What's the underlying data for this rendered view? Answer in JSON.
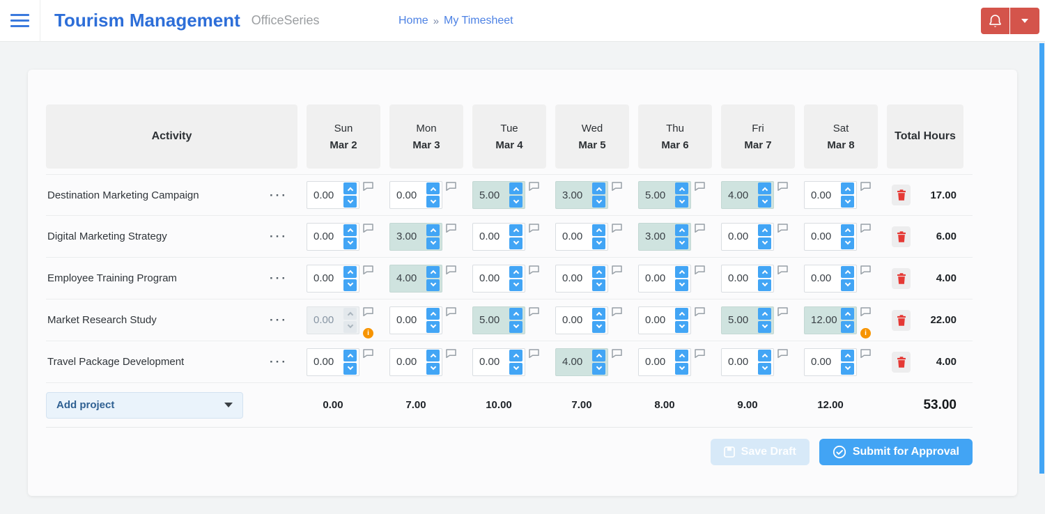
{
  "topbar": {
    "title": "Tourism Management",
    "product": "OfficeSeries",
    "breadcrumb": {
      "home": "Home",
      "separator": "»",
      "current": "My Timesheet"
    }
  },
  "timesheet": {
    "columns": {
      "activity_label": "Activity",
      "total_label": "Total Hours",
      "days": [
        {
          "name": "Sun",
          "date": "Mar 2"
        },
        {
          "name": "Mon",
          "date": "Mar 3"
        },
        {
          "name": "Tue",
          "date": "Mar 4"
        },
        {
          "name": "Wed",
          "date": "Mar 5"
        },
        {
          "name": "Thu",
          "date": "Mar 6"
        },
        {
          "name": "Fri",
          "date": "Mar 7"
        },
        {
          "name": "Sat",
          "date": "Mar 8"
        }
      ]
    },
    "rows": [
      {
        "activity": "Destination Marketing Campaign",
        "total": "17.00",
        "cells": [
          {
            "value": "0.00",
            "filled": false,
            "disabled": false,
            "warning": false
          },
          {
            "value": "0.00",
            "filled": false,
            "disabled": false,
            "warning": false
          },
          {
            "value": "5.00",
            "filled": true,
            "disabled": false,
            "warning": false
          },
          {
            "value": "3.00",
            "filled": true,
            "disabled": false,
            "warning": false
          },
          {
            "value": "5.00",
            "filled": true,
            "disabled": false,
            "warning": false
          },
          {
            "value": "4.00",
            "filled": true,
            "disabled": false,
            "warning": false
          },
          {
            "value": "0.00",
            "filled": false,
            "disabled": false,
            "warning": false
          }
        ]
      },
      {
        "activity": "Digital Marketing Strategy",
        "total": "6.00",
        "cells": [
          {
            "value": "0.00",
            "filled": false,
            "disabled": false,
            "warning": false
          },
          {
            "value": "3.00",
            "filled": true,
            "disabled": false,
            "warning": false
          },
          {
            "value": "0.00",
            "filled": false,
            "disabled": false,
            "warning": false
          },
          {
            "value": "0.00",
            "filled": false,
            "disabled": false,
            "warning": false
          },
          {
            "value": "3.00",
            "filled": true,
            "disabled": false,
            "warning": false
          },
          {
            "value": "0.00",
            "filled": false,
            "disabled": false,
            "warning": false
          },
          {
            "value": "0.00",
            "filled": false,
            "disabled": false,
            "warning": false
          }
        ]
      },
      {
        "activity": "Employee Training Program",
        "total": "4.00",
        "cells": [
          {
            "value": "0.00",
            "filled": false,
            "disabled": false,
            "warning": false
          },
          {
            "value": "4.00",
            "filled": true,
            "disabled": false,
            "warning": false
          },
          {
            "value": "0.00",
            "filled": false,
            "disabled": false,
            "warning": false
          },
          {
            "value": "0.00",
            "filled": false,
            "disabled": false,
            "warning": false
          },
          {
            "value": "0.00",
            "filled": false,
            "disabled": false,
            "warning": false
          },
          {
            "value": "0.00",
            "filled": false,
            "disabled": false,
            "warning": false
          },
          {
            "value": "0.00",
            "filled": false,
            "disabled": false,
            "warning": false
          }
        ]
      },
      {
        "activity": "Market Research Study",
        "total": "22.00",
        "cells": [
          {
            "value": "0.00",
            "filled": false,
            "disabled": true,
            "warning": true
          },
          {
            "value": "0.00",
            "filled": false,
            "disabled": false,
            "warning": false
          },
          {
            "value": "5.00",
            "filled": true,
            "disabled": false,
            "warning": false
          },
          {
            "value": "0.00",
            "filled": false,
            "disabled": false,
            "warning": false
          },
          {
            "value": "0.00",
            "filled": false,
            "disabled": false,
            "warning": false
          },
          {
            "value": "5.00",
            "filled": true,
            "disabled": false,
            "warning": false
          },
          {
            "value": "12.00",
            "filled": true,
            "disabled": false,
            "warning": true
          }
        ]
      },
      {
        "activity": "Travel Package Development",
        "total": "4.00",
        "cells": [
          {
            "value": "0.00",
            "filled": false,
            "disabled": false,
            "warning": false
          },
          {
            "value": "0.00",
            "filled": false,
            "disabled": false,
            "warning": false
          },
          {
            "value": "0.00",
            "filled": false,
            "disabled": false,
            "warning": false
          },
          {
            "value": "4.00",
            "filled": true,
            "disabled": false,
            "warning": false
          },
          {
            "value": "0.00",
            "filled": false,
            "disabled": false,
            "warning": false
          },
          {
            "value": "0.00",
            "filled": false,
            "disabled": false,
            "warning": false
          },
          {
            "value": "0.00",
            "filled": false,
            "disabled": false,
            "warning": false
          }
        ]
      }
    ],
    "footer": {
      "add_project_label": "Add project",
      "day_totals": [
        "0.00",
        "7.00",
        "10.00",
        "7.00",
        "8.00",
        "9.00",
        "12.00"
      ],
      "grand_total": "53.00"
    },
    "actions": {
      "save_draft_label": "Save Draft",
      "submit_label": "Submit for Approval"
    }
  },
  "icons": {
    "menu": "hamburger-bars",
    "notifications": "bell",
    "account_dropdown": "caret-down",
    "row_options_glyph": "···",
    "comment": "speech-bubble",
    "warning_glyph": "i",
    "warning": "info-circle-orange",
    "delete": "trash",
    "increment": "chevron-up",
    "decrement": "chevron-down",
    "save": "floppy-disk",
    "submit": "check-circle"
  },
  "colors": {
    "accent_blue": "#42a5f5",
    "title_blue": "#2d6ed8",
    "link_blue": "#4d82e4",
    "danger_red": "#d4544b",
    "trash_red": "#e53935",
    "filled_cell_teal": "#cfe3df",
    "warning_orange": "#f79400",
    "header_cell_bg": "#f0f0f0",
    "page_bg": "#f2f4f5"
  }
}
